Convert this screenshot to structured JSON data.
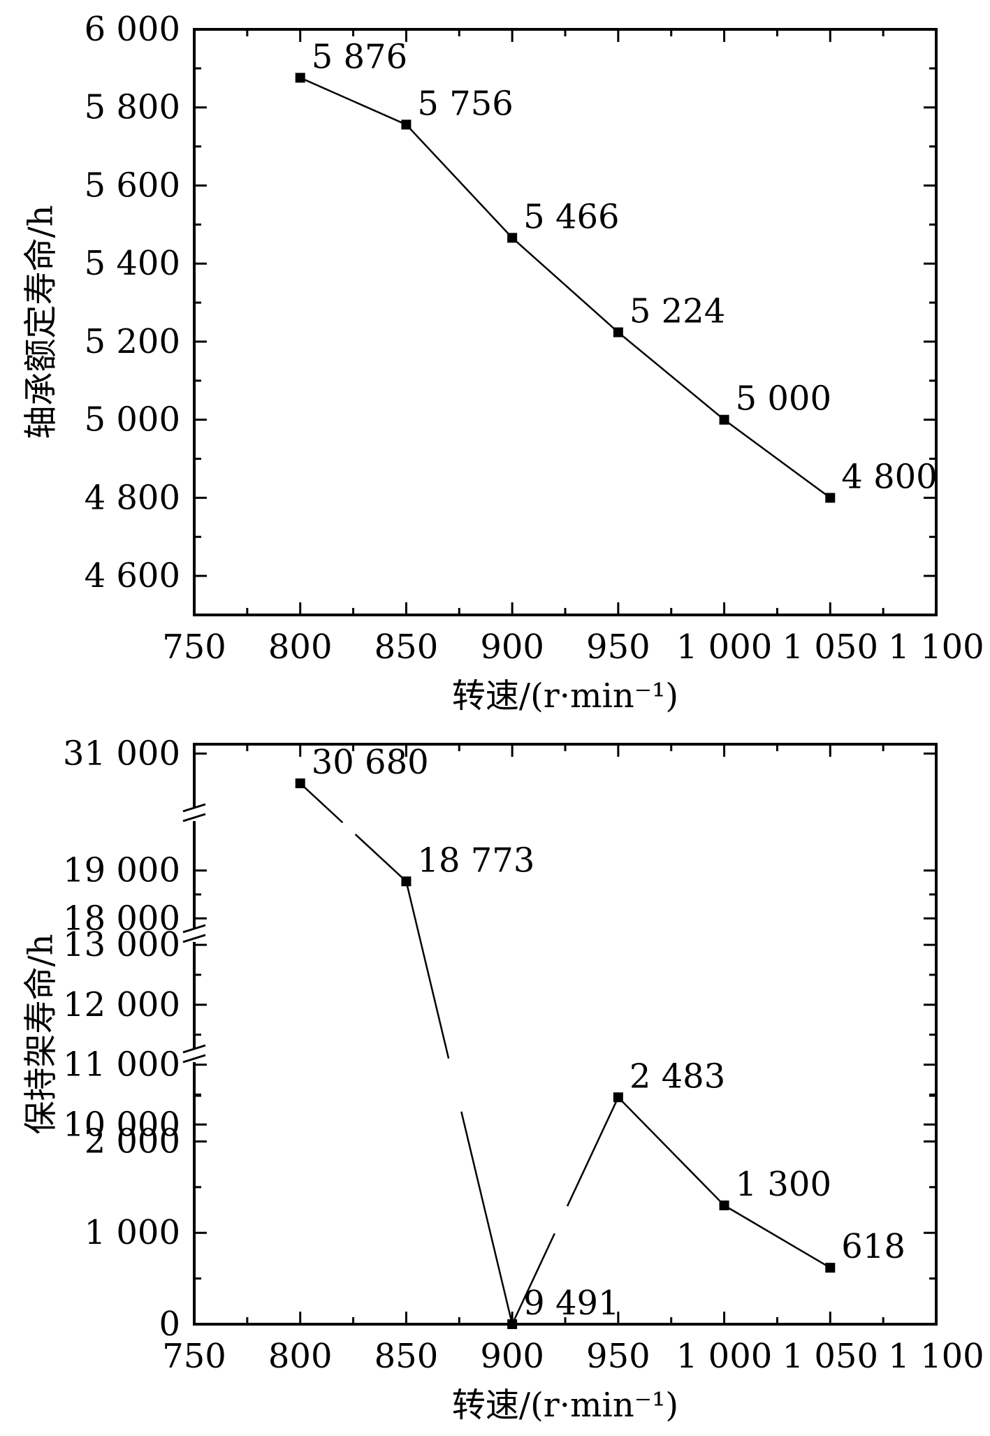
{
  "chart_data": [
    {
      "type": "line",
      "xlabel": "转速/(r·min⁻¹)",
      "ylabel": "轴承额定寿命/h",
      "xlim": [
        750,
        1100
      ],
      "ylim": [
        4500,
        6000
      ],
      "x_ticks": [
        750,
        800,
        850,
        900,
        950,
        1000,
        1050,
        1100
      ],
      "x_tick_labels": [
        "750",
        "800",
        "850",
        "900",
        "950",
        "1 000",
        "1 050",
        "1 100"
      ],
      "y_ticks": [
        4600,
        4800,
        5000,
        5200,
        5400,
        5600,
        5800,
        6000
      ],
      "y_tick_labels": [
        "4 600",
        "4 800",
        "5 000",
        "5 200",
        "5 400",
        "5 600",
        "5 800",
        "6 000"
      ],
      "x": [
        800,
        850,
        900,
        950,
        1000,
        1050
      ],
      "values": [
        5876,
        5756,
        5466,
        5224,
        5000,
        4800
      ],
      "point_labels": [
        "5 876",
        "5 756",
        "5 466",
        "5 224",
        "5 000",
        "4 800"
      ],
      "marker": "square",
      "color": "#000000",
      "grid": false
    },
    {
      "type": "line",
      "xlabel": "转速/(r·min⁻¹)",
      "ylabel": "保持架寿命/h",
      "xlim": [
        750,
        1100
      ],
      "y_axis_breaks": true,
      "y_segments": [
        [
          0,
          2600
        ],
        [
          9700,
          13200
        ],
        [
          17800,
          19200
        ],
        [
          30500,
          31100
        ]
      ],
      "x_ticks": [
        750,
        800,
        850,
        900,
        950,
        1000,
        1050,
        1100
      ],
      "x_tick_labels": [
        "750",
        "800",
        "850",
        "900",
        "950",
        "1 000",
        "1 050",
        "1 100"
      ],
      "y_ticks": [
        0,
        1000,
        2000,
        10000,
        11000,
        12000,
        13000,
        18000,
        19000,
        31000
      ],
      "y_tick_labels": [
        "0",
        "1 000",
        "2 000",
        "10 000",
        "11 000",
        "12 000",
        "13 000",
        "18 000",
        "19 000",
        "31 000"
      ],
      "x": [
        800,
        850,
        900,
        950,
        1000,
        1050
      ],
      "values": [
        30680,
        18773,
        9491,
        2483,
        1300,
        618
      ],
      "point_labels": [
        "30 680",
        "18 773",
        "9 491",
        "2 483",
        "1 300",
        "618"
      ],
      "marker": "square",
      "color": "#000000",
      "grid": false
    }
  ]
}
